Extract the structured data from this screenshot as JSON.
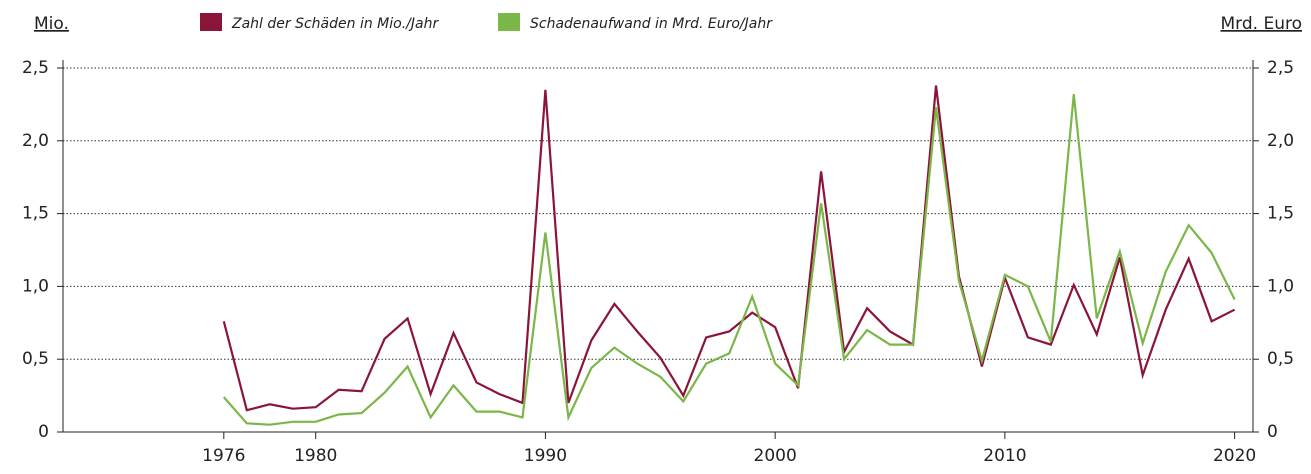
{
  "chart_data": {
    "type": "line",
    "y_label": "Mio.",
    "y2_label": "Mrd. Euro",
    "x": [
      1976,
      1977,
      1978,
      1979,
      1980,
      1981,
      1982,
      1983,
      1984,
      1985,
      1986,
      1987,
      1988,
      1989,
      1990,
      1991,
      1992,
      1993,
      1994,
      1995,
      1996,
      1997,
      1998,
      1999,
      2000,
      2001,
      2002,
      2003,
      2004,
      2005,
      2006,
      2007,
      2008,
      2009,
      2010,
      2011,
      2012,
      2013,
      2014,
      2015,
      2016,
      2017,
      2018,
      2019,
      2020
    ],
    "series": [
      {
        "name": "Zahl der Schäden in Mio./Jahr",
        "color": "#8b1538",
        "values": [
          0.76,
          0.15,
          0.19,
          0.16,
          0.17,
          0.29,
          0.28,
          0.64,
          0.78,
          0.26,
          0.68,
          0.34,
          0.26,
          0.2,
          2.35,
          0.2,
          0.63,
          0.88,
          0.69,
          0.51,
          0.25,
          0.65,
          0.69,
          0.82,
          0.72,
          0.3,
          1.79,
          0.55,
          0.85,
          0.69,
          0.6,
          2.38,
          1.07,
          0.45,
          1.06,
          0.65,
          0.6,
          1.01,
          0.67,
          1.2,
          0.39,
          0.84,
          1.19,
          0.76,
          0.84
        ]
      },
      {
        "name": "Schadenaufwand in Mrd. Euro/Jahr",
        "color": "#7ab648",
        "axis": "y2",
        "values": [
          0.24,
          0.06,
          0.05,
          0.07,
          0.07,
          0.12,
          0.13,
          0.27,
          0.45,
          0.1,
          0.32,
          0.14,
          0.14,
          0.1,
          1.37,
          0.1,
          0.44,
          0.58,
          0.47,
          0.38,
          0.21,
          0.47,
          0.54,
          0.93,
          0.47,
          0.32,
          1.57,
          0.5,
          0.7,
          0.6,
          0.6,
          2.23,
          1.04,
          0.49,
          1.08,
          1.0,
          0.62,
          2.32,
          0.78,
          1.24,
          0.61,
          1.1,
          1.42,
          1.23,
          0.91
        ]
      }
    ],
    "xlim": [
      1969,
      2020.8
    ],
    "xticks": [
      1976,
      1980,
      1990,
      2000,
      2010,
      2020
    ],
    "ylim": [
      0,
      2.5
    ],
    "yticks": [
      0,
      {
        "value": 0.5,
        "label": "0,5"
      },
      {
        "value": 1.0,
        "label": "1,0"
      },
      {
        "value": 1.5,
        "label": "1,5"
      },
      {
        "value": 2.0,
        "label": "2,0"
      },
      {
        "value": 2.5,
        "label": "2,5"
      }
    ],
    "y2lim": [
      0,
      2.5
    ],
    "y2ticks": [
      0,
      {
        "value": 0.5,
        "label": "0,5"
      },
      {
        "value": 1.0,
        "label": "1,0"
      },
      {
        "value": 1.5,
        "label": "1,5"
      },
      {
        "value": 2.0,
        "label": "2,0"
      },
      {
        "value": 2.5,
        "label": "2,5"
      }
    ],
    "grid": true
  }
}
